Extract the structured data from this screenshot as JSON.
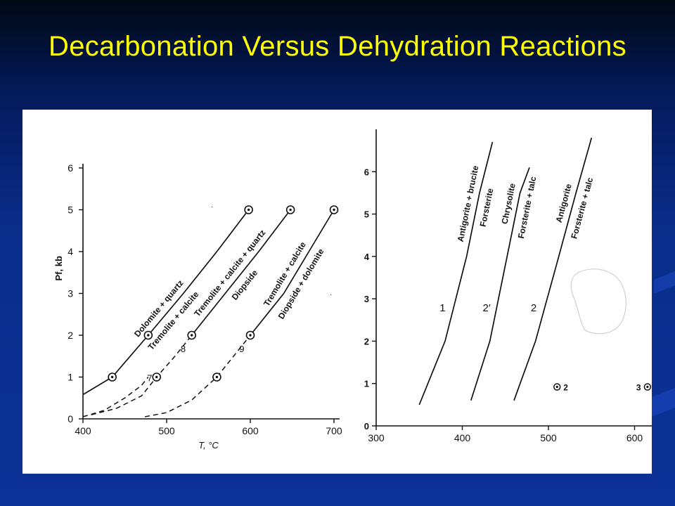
{
  "slide": {
    "title": "Decarbonation Versus Dehydration Reactions"
  },
  "colors": {
    "background_top": "#000814",
    "background_bottom": "#0c3399",
    "title": "#ffff00",
    "figure_background": "#ffffff",
    "ink": "#111111"
  },
  "chart_data": [
    {
      "type": "line",
      "title": "",
      "xlabel": "T, °C",
      "ylabel": "Pf, kb",
      "xlim": [
        400,
        700
      ],
      "ylim": [
        0,
        6
      ],
      "xticks": [
        400,
        500,
        600,
        700
      ],
      "yticks": [
        0,
        1,
        2,
        3,
        4,
        5,
        6
      ],
      "grid": false,
      "series": [
        {
          "name": "7",
          "upper_label": "Dolomite + quartz",
          "lower_label": "Tremolite + calcite",
          "solid": [
            [
              400,
              0.58
            ],
            [
              435,
              1.0
            ],
            [
              478,
              2.0
            ],
            [
              520,
              3.0
            ],
            [
              560,
              4.0
            ],
            [
              598,
              5.0
            ]
          ],
          "dashed": [
            [
              400,
              0.05
            ],
            [
              425,
              0.2
            ],
            [
              450,
              0.5
            ],
            [
              470,
              0.8
            ],
            [
              478,
              1.0
            ]
          ],
          "experiments": [
            [
              435,
              1.0
            ],
            [
              478,
              2.0
            ],
            [
              598,
              5.0
            ]
          ]
        },
        {
          "name": "8",
          "upper_label": "Tremolite + calcite + quartz",
          "lower_label": "Diopside",
          "solid": [
            [
              530,
              2.0
            ],
            [
              570,
              3.0
            ],
            [
              610,
              4.0
            ],
            [
              648,
              5.0
            ]
          ],
          "dashed": [
            [
              410,
              0.1
            ],
            [
              440,
              0.25
            ],
            [
              470,
              0.55
            ],
            [
              488,
              1.0
            ],
            [
              510,
              1.5
            ],
            [
              530,
              2.0
            ]
          ],
          "experiments": [
            [
              488,
              1.0
            ],
            [
              530,
              2.0
            ],
            [
              648,
              5.0
            ]
          ]
        },
        {
          "name": "9",
          "upper_label": "Tremolite + calcite",
          "lower_label": "Diopside + dolomite",
          "solid": [
            [
              600,
              2.0
            ],
            [
              640,
              3.0
            ],
            [
              670,
              4.0
            ],
            [
              700,
              5.0
            ]
          ],
          "dashed": [
            [
              474,
              0.05
            ],
            [
              500,
              0.15
            ],
            [
              530,
              0.45
            ],
            [
              560,
              1.0
            ],
            [
              580,
              1.5
            ],
            [
              600,
              2.0
            ]
          ],
          "experiments": [
            [
              560,
              1.0
            ],
            [
              600,
              2.0
            ],
            [
              700,
              5.0
            ]
          ]
        }
      ]
    },
    {
      "type": "line",
      "title": "",
      "xlabel": "",
      "ylabel": "",
      "xlim": [
        300,
        620
      ],
      "ylim": [
        0,
        7
      ],
      "xticks": [
        300,
        400,
        500,
        600
      ],
      "yticks": [
        0,
        1,
        2,
        3,
        4,
        5,
        6
      ],
      "grid": false,
      "series": [
        {
          "name": "1",
          "upper_label": "Antigorite + brucite",
          "lower_label": "Forsterite",
          "points": [
            [
              350,
              0.5
            ],
            [
              380,
              2.0
            ],
            [
              405,
              4.0
            ],
            [
              420,
              5.5
            ],
            [
              435,
              6.7
            ]
          ]
        },
        {
          "name": "2′",
          "upper_label": "Chrysolite",
          "lower_label": "Forsterite + talc",
          "points": [
            [
              410,
              0.6
            ],
            [
              432,
              2.0
            ],
            [
              452,
              4.0
            ],
            [
              467,
              5.5
            ],
            [
              478,
              6.1
            ]
          ]
        },
        {
          "name": "2",
          "upper_label": "Antigorite",
          "lower_label": "Forsterite + talc",
          "points": [
            [
              460,
              0.6
            ],
            [
              485,
              2.0
            ],
            [
              512,
              4.0
            ],
            [
              532,
              5.5
            ],
            [
              550,
              6.8
            ]
          ]
        }
      ],
      "experiments": [
        {
          "label": "2",
          "x": 510,
          "y": 0.92
        },
        {
          "label": "3",
          "x": 615,
          "y": 0.92
        }
      ]
    }
  ]
}
